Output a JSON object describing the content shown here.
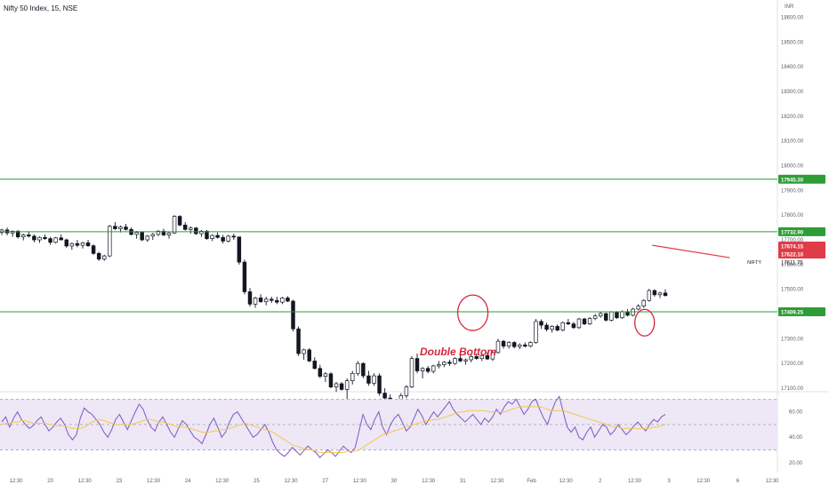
{
  "header": {
    "title": "Nifty 50 Index, 15, NSE"
  },
  "chart_data": {
    "type": "candlestick",
    "symbol": "NIFTY",
    "currency": "INR",
    "price_axis": {
      "ticks": [
        18600,
        18500,
        18400,
        18300,
        18200,
        18100,
        18000,
        17900,
        17800,
        17700,
        17600,
        17500,
        17400,
        17300,
        17200,
        17100
      ],
      "tick_labels": [
        "18600.00",
        "18500.00",
        "18400.00",
        "18300.00",
        "18200.00",
        "18100.00",
        "18000.00",
        "17900.00",
        "17800.00",
        "17700.00",
        "17600.00",
        "17500.00",
        "17400.00",
        "17300.00",
        "17200.00",
        "17100.00"
      ],
      "range": [
        17100,
        18620
      ]
    },
    "time_axis": {
      "labels": [
        "12:30",
        "20",
        "12:30",
        "23",
        "12:30",
        "24",
        "12:30",
        "25",
        "12:30",
        "27",
        "12:30",
        "30",
        "12:30",
        "31",
        "12:30",
        "Feb",
        "12:30",
        "2",
        "12:30",
        "3",
        "12:30",
        "6",
        "12:30"
      ],
      "range": [
        0,
        100
      ]
    },
    "horizontal_levels": [
      {
        "price": 17945.3,
        "label": "17945.30",
        "color": "#2e9d36"
      },
      {
        "price": 17732.9,
        "label": "17732.90",
        "color": "#2e9d36"
      },
      {
        "price": 17409.25,
        "label": "17409.25",
        "color": "#2e9d36"
      }
    ],
    "price_badges": [
      {
        "label": "17674.15",
        "color": "#e03b48"
      },
      {
        "label": "17622.10",
        "color": "#e03b48"
      }
    ],
    "last_price": {
      "value": 17611.75,
      "label": "17611.75",
      "symbol_label": "NIFTY"
    },
    "trendline": {
      "from": {
        "t": 84.3,
        "price": 17678
      },
      "to": {
        "t": 94.3,
        "price": 17628
      },
      "color": "#e03b48"
    },
    "annotation": {
      "text": "Double Bottom",
      "color": "#d6273a"
    },
    "circles": [
      {
        "t": 61.1,
        "price": 17405,
        "color": "#d6273a"
      },
      {
        "t": 83.3,
        "price": 17365,
        "color": "#d6273a"
      }
    ],
    "candles": [
      [
        17730,
        17745,
        17720,
        17740
      ],
      [
        17740,
        17750,
        17718,
        17728
      ],
      [
        17728,
        17738,
        17712,
        17735
      ],
      [
        17735,
        17740,
        17705,
        17712
      ],
      [
        17712,
        17725,
        17698,
        17720
      ],
      [
        17720,
        17735,
        17710,
        17715
      ],
      [
        17715,
        17722,
        17690,
        17700
      ],
      [
        17700,
        17715,
        17688,
        17710
      ],
      [
        17710,
        17722,
        17700,
        17705
      ],
      [
        17705,
        17712,
        17680,
        17690
      ],
      [
        17690,
        17712,
        17685,
        17708
      ],
      [
        17708,
        17722,
        17698,
        17700
      ],
      [
        17700,
        17705,
        17668,
        17675
      ],
      [
        17675,
        17690,
        17660,
        17685
      ],
      [
        17685,
        17700,
        17670,
        17678
      ],
      [
        17678,
        17692,
        17665,
        17688
      ],
      [
        17688,
        17700,
        17672,
        17676
      ],
      [
        17676,
        17682,
        17640,
        17645
      ],
      [
        17645,
        17652,
        17615,
        17622
      ],
      [
        17622,
        17640,
        17615,
        17635
      ],
      [
        17635,
        17760,
        17630,
        17755
      ],
      [
        17755,
        17772,
        17740,
        17745
      ],
      [
        17745,
        17758,
        17730,
        17752
      ],
      [
        17752,
        17765,
        17738,
        17742
      ],
      [
        17742,
        17750,
        17718,
        17722
      ],
      [
        17722,
        17736,
        17705,
        17730
      ],
      [
        17730,
        17735,
        17695,
        17700
      ],
      [
        17700,
        17720,
        17692,
        17715
      ],
      [
        17715,
        17728,
        17700,
        17722
      ],
      [
        17722,
        17740,
        17715,
        17735
      ],
      [
        17735,
        17745,
        17715,
        17720
      ],
      [
        17720,
        17732,
        17705,
        17728
      ],
      [
        17728,
        17800,
        17725,
        17795
      ],
      [
        17795,
        17800,
        17755,
        17760
      ],
      [
        17760,
        17772,
        17738,
        17742
      ],
      [
        17742,
        17755,
        17725,
        17748
      ],
      [
        17748,
        17752,
        17720,
        17725
      ],
      [
        17725,
        17740,
        17712,
        17735
      ],
      [
        17735,
        17740,
        17700,
        17705
      ],
      [
        17705,
        17722,
        17695,
        17718
      ],
      [
        17718,
        17730,
        17705,
        17710
      ],
      [
        17710,
        17720,
        17685,
        17695
      ],
      [
        17695,
        17720,
        17690,
        17715
      ],
      [
        17715,
        17725,
        17700,
        17712
      ],
      [
        17712,
        17712,
        17600,
        17610
      ],
      [
        17610,
        17620,
        17480,
        17490
      ],
      [
        17490,
        17505,
        17430,
        17440
      ],
      [
        17440,
        17470,
        17425,
        17465
      ],
      [
        17465,
        17480,
        17445,
        17450
      ],
      [
        17450,
        17470,
        17435,
        17460
      ],
      [
        17460,
        17470,
        17445,
        17455
      ],
      [
        17455,
        17470,
        17440,
        17448
      ],
      [
        17448,
        17470,
        17440,
        17465
      ],
      [
        17465,
        17472,
        17448,
        17452
      ],
      [
        17452,
        17458,
        17330,
        17340
      ],
      [
        17340,
        17350,
        17230,
        17240
      ],
      [
        17240,
        17260,
        17215,
        17255
      ],
      [
        17255,
        17262,
        17205,
        17210
      ],
      [
        17210,
        17225,
        17175,
        17180
      ],
      [
        17180,
        17195,
        17140,
        17148
      ],
      [
        17148,
        17165,
        17125,
        17158
      ],
      [
        17158,
        17165,
        17100,
        17105
      ],
      [
        17105,
        17125,
        17085,
        17118
      ],
      [
        17118,
        17125,
        17090,
        17095
      ],
      [
        17095,
        17140,
        17020,
        17130
      ],
      [
        17130,
        17170,
        17115,
        17160
      ],
      [
        17160,
        17210,
        17150,
        17200
      ],
      [
        17200,
        17205,
        17140,
        17150
      ],
      [
        17150,
        17170,
        17110,
        17120
      ],
      [
        17120,
        17160,
        17110,
        17150
      ],
      [
        17150,
        17160,
        17070,
        17080
      ],
      [
        17080,
        17100,
        17050,
        17060
      ],
      [
        17060,
        17075,
        17010,
        17020
      ],
      [
        17020,
        17040,
        16990,
        17030
      ],
      [
        17030,
        17080,
        17020,
        17070
      ],
      [
        17070,
        17112,
        17060,
        17105
      ],
      [
        17105,
        17230,
        17100,
        17220
      ],
      [
        17220,
        17240,
        17160,
        17170
      ],
      [
        17170,
        17185,
        17140,
        17180
      ],
      [
        17180,
        17190,
        17160,
        17168
      ],
      [
        17168,
        17195,
        17160,
        17190
      ],
      [
        17190,
        17210,
        17180,
        17195
      ],
      [
        17195,
        17210,
        17185,
        17205
      ],
      [
        17205,
        17215,
        17190,
        17200
      ],
      [
        17200,
        17225,
        17195,
        17220
      ],
      [
        17220,
        17235,
        17205,
        17210
      ],
      [
        17210,
        17220,
        17195,
        17215
      ],
      [
        17215,
        17235,
        17205,
        17228
      ],
      [
        17228,
        17240,
        17215,
        17220
      ],
      [
        17220,
        17238,
        17210,
        17232
      ],
      [
        17232,
        17245,
        17215,
        17218
      ],
      [
        17218,
        17250,
        17210,
        17244
      ],
      [
        17244,
        17300,
        17240,
        17290
      ],
      [
        17290,
        17295,
        17260,
        17270
      ],
      [
        17270,
        17290,
        17260,
        17285
      ],
      [
        17285,
        17290,
        17260,
        17268
      ],
      [
        17268,
        17282,
        17258,
        17275
      ],
      [
        17275,
        17285,
        17265,
        17270
      ],
      [
        17270,
        17290,
        17265,
        17285
      ],
      [
        17285,
        17380,
        17280,
        17370
      ],
      [
        17370,
        17378,
        17340,
        17355
      ],
      [
        17355,
        17365,
        17330,
        17338
      ],
      [
        17338,
        17355,
        17325,
        17350
      ],
      [
        17350,
        17358,
        17330,
        17335
      ],
      [
        17335,
        17370,
        17330,
        17365
      ],
      [
        17365,
        17380,
        17355,
        17360
      ],
      [
        17360,
        17368,
        17340,
        17345
      ],
      [
        17345,
        17385,
        17340,
        17380
      ],
      [
        17380,
        17385,
        17355,
        17360
      ],
      [
        17360,
        17388,
        17355,
        17382
      ],
      [
        17382,
        17400,
        17375,
        17392
      ],
      [
        17392,
        17408,
        17385,
        17402
      ],
      [
        17402,
        17405,
        17370,
        17375
      ],
      [
        17375,
        17412,
        17370,
        17408
      ],
      [
        17408,
        17412,
        17380,
        17385
      ],
      [
        17385,
        17415,
        17380,
        17410
      ],
      [
        17410,
        17420,
        17390,
        17395
      ],
      [
        17395,
        17425,
        17390,
        17420
      ],
      [
        17420,
        17440,
        17415,
        17432
      ],
      [
        17432,
        17460,
        17425,
        17455
      ],
      [
        17455,
        17502,
        17450,
        17495
      ],
      [
        17495,
        17500,
        17470,
        17478
      ],
      [
        17478,
        17490,
        17465,
        17485
      ],
      [
        17485,
        17500,
        17470,
        17475
      ]
    ],
    "rsi": {
      "axis_ticks": [
        60,
        40,
        20
      ],
      "tick_labels": [
        "60.00",
        "40.00",
        "20.00"
      ],
      "range": [
        15,
        73
      ],
      "band": [
        30,
        70
      ],
      "midline": 50,
      "line_color": "#7e57c2",
      "ma_color": "#f2c94c",
      "band_fill": "#ede7f6",
      "values": [
        52,
        56,
        48,
        55,
        60,
        54,
        50,
        47,
        49,
        53,
        56,
        50,
        45,
        48,
        52,
        55,
        50,
        42,
        38,
        42,
        55,
        63,
        60,
        58,
        54,
        50,
        44,
        40,
        46,
        54,
        58,
        52,
        46,
        53,
        60,
        66,
        62,
        54,
        48,
        45,
        52,
        56,
        50,
        44,
        40,
        47,
        53,
        50,
        45,
        40,
        38,
        35,
        42,
        50,
        55,
        48,
        40,
        44,
        52,
        58,
        60,
        55,
        50,
        45,
        40,
        42,
        46,
        50,
        44,
        36,
        30,
        27,
        25,
        28,
        32,
        29,
        26,
        30,
        33,
        30,
        28,
        24,
        27,
        30,
        28,
        25,
        29,
        33,
        30,
        28,
        32,
        45,
        58,
        50,
        46,
        54,
        60,
        48,
        42,
        50,
        55,
        58,
        52,
        45,
        48,
        55,
        62,
        57,
        50,
        55,
        60,
        56,
        60,
        64,
        68,
        62,
        58,
        55,
        52,
        55,
        58,
        54,
        50,
        55,
        52,
        56,
        62,
        58,
        64,
        68,
        66,
        70,
        64,
        58,
        62,
        68,
        70,
        62,
        55,
        50,
        60,
        68,
        72,
        60,
        48,
        44,
        48,
        40,
        38,
        44,
        48,
        40,
        45,
        50,
        48,
        42,
        45,
        50,
        46,
        42,
        45,
        49,
        52,
        48,
        45,
        50,
        54,
        52,
        56,
        58
      ],
      "ma_values": [
        50,
        51,
        51,
        52,
        52,
        53,
        53,
        52,
        51,
        51,
        51,
        51,
        50,
        50,
        49,
        49,
        49,
        48,
        47,
        47,
        47,
        48,
        50,
        52,
        53,
        54,
        53,
        52,
        51,
        50,
        50,
        50,
        50,
        50,
        51,
        52,
        53,
        54,
        54,
        53,
        52,
        52,
        51,
        50,
        49,
        48,
        48,
        48,
        47,
        46,
        45,
        44,
        44,
        44,
        45,
        45,
        46,
        46,
        47,
        48,
        49,
        50,
        51,
        50,
        49,
        48,
        47,
        46,
        45,
        44,
        42,
        40,
        38,
        36,
        34,
        33,
        32,
        31,
        30,
        30,
        29,
        28,
        28,
        28,
        28,
        28,
        28,
        28,
        29,
        29,
        29,
        30,
        32,
        34,
        36,
        38,
        40,
        42,
        43,
        44,
        45,
        46,
        47,
        48,
        49,
        50,
        51,
        52,
        53,
        53,
        54,
        54,
        55,
        56,
        57,
        58,
        59,
        60,
        60,
        61,
        61,
        61,
        61,
        61,
        60,
        60,
        60,
        60,
        60,
        61,
        62,
        63,
        64,
        64,
        64,
        64,
        64,
        64,
        63,
        62,
        61,
        61,
        61,
        61,
        60,
        59,
        58,
        57,
        56,
        55,
        54,
        53,
        52,
        51,
        50,
        49,
        48,
        48,
        47,
        47,
        47,
        47,
        47,
        47,
        47,
        47,
        48,
        48,
        49,
        50
      ]
    }
  }
}
